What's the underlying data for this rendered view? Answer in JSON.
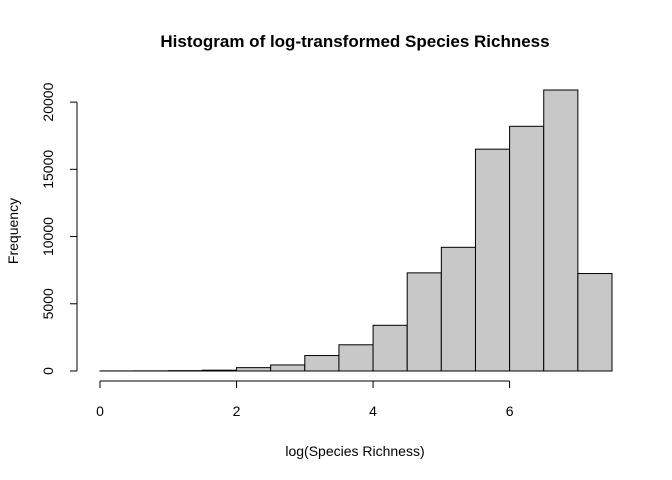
{
  "chart_data": {
    "type": "bar",
    "subtype": "histogram",
    "title": "Histogram of log-transformed Species Richness",
    "xlabel": "log(Species Richness)",
    "ylabel": "Frequency",
    "bin_width": 0.5,
    "bins": [
      {
        "start": 0.0,
        "end": 0.5,
        "count": 5
      },
      {
        "start": 0.5,
        "end": 1.0,
        "count": 10
      },
      {
        "start": 1.0,
        "end": 1.5,
        "count": 25
      },
      {
        "start": 1.5,
        "end": 2.0,
        "count": 60
      },
      {
        "start": 2.0,
        "end": 2.5,
        "count": 250
      },
      {
        "start": 2.5,
        "end": 3.0,
        "count": 450
      },
      {
        "start": 3.0,
        "end": 3.5,
        "count": 1150
      },
      {
        "start": 3.5,
        "end": 4.0,
        "count": 1950
      },
      {
        "start": 4.0,
        "end": 4.5,
        "count": 3400
      },
      {
        "start": 4.5,
        "end": 5.0,
        "count": 7300
      },
      {
        "start": 5.0,
        "end": 5.5,
        "count": 9200
      },
      {
        "start": 5.5,
        "end": 6.0,
        "count": 16500
      },
      {
        "start": 6.0,
        "end": 6.5,
        "count": 18200
      },
      {
        "start": 6.5,
        "end": 7.0,
        "count": 20900
      },
      {
        "start": 7.0,
        "end": 7.5,
        "count": 7250
      }
    ],
    "xlim": [
      0,
      7.5
    ],
    "ylim": [
      0,
      20900
    ],
    "x_ticks": [
      0,
      2,
      4,
      6
    ],
    "x_tick_labels": [
      "0",
      "2",
      "4",
      "6"
    ],
    "y_ticks": [
      0,
      5000,
      10000,
      15000,
      20000
    ],
    "y_tick_labels": [
      "0",
      "5000",
      "10000",
      "15000",
      "20000"
    ],
    "bar_fill": "#c8c8c8",
    "bar_stroke": "#000000",
    "grid": false
  }
}
